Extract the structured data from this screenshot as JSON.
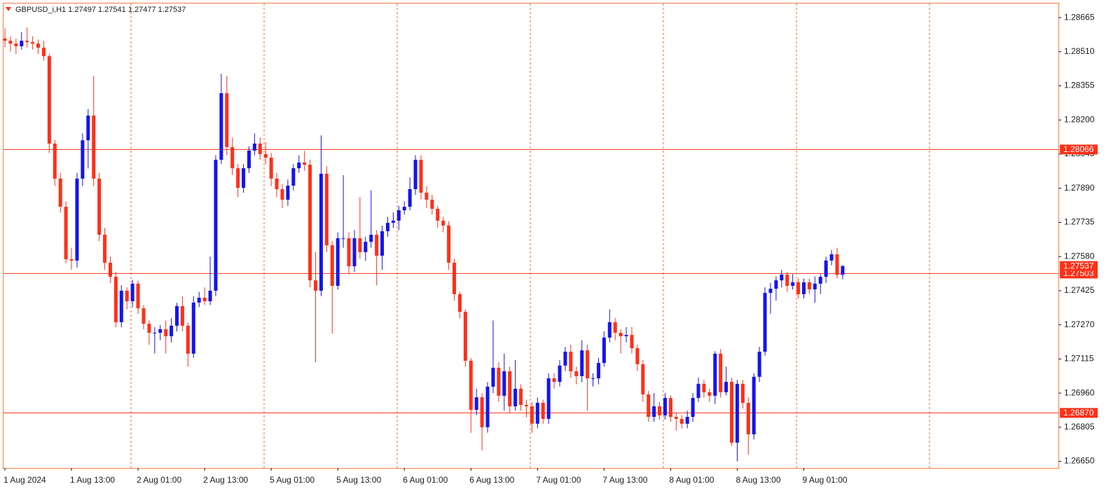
{
  "chart_data": {
    "type": "candlestick",
    "title": "GBPUSD_i,H1  1.27497 1.27541 1.27477 1.27537",
    "categories": [
      "1 Aug 2024",
      null,
      null,
      null,
      null,
      null,
      null,
      null,
      null,
      null,
      null,
      null,
      "1 Aug 13:00",
      null,
      null,
      null,
      null,
      null,
      null,
      null,
      null,
      null,
      null,
      null,
      "2 Aug 01:00",
      null,
      null,
      null,
      null,
      null,
      null,
      null,
      null,
      null,
      null,
      null,
      "2 Aug 13:00",
      null,
      null,
      null,
      null,
      null,
      null,
      null,
      null,
      null,
      null,
      null,
      "5 Aug 01:00",
      null,
      null,
      null,
      null,
      null,
      null,
      null,
      null,
      null,
      null,
      null,
      "5 Aug 13:00",
      null,
      null,
      null,
      null,
      null,
      null,
      null,
      null,
      null,
      null,
      null,
      "6 Aug 01:00",
      null,
      null,
      null,
      null,
      null,
      null,
      null,
      null,
      null,
      null,
      null,
      "6 Aug 13:00",
      null,
      null,
      null,
      null,
      null,
      null,
      null,
      null,
      null,
      null,
      null,
      "7 Aug 01:00",
      null,
      null,
      null,
      null,
      null,
      null,
      null,
      null,
      null,
      null,
      null,
      "7 Aug 13:00",
      null,
      null,
      null,
      null,
      null,
      null,
      null,
      null,
      null,
      null,
      null,
      "8 Aug 01:00",
      null,
      null,
      null,
      null,
      null,
      null,
      null,
      null,
      null,
      null,
      null,
      "8 Aug 13:00",
      null,
      null,
      null,
      null,
      null,
      null,
      null,
      null,
      null,
      null,
      null,
      "9 Aug 01:00",
      null,
      null,
      null,
      null,
      null,
      null,
      null
    ],
    "open": [
      1.2857,
      1.2856,
      1.28547,
      1.28535,
      1.2856,
      1.28554,
      1.28547,
      1.28528,
      1.2849,
      1.28093,
      1.27934,
      1.27806,
      1.27568,
      1.27562,
      1.27934,
      1.28108,
      1.2822,
      1.27934,
      1.27679,
      1.27552,
      1.27488,
      1.27282,
      1.27425,
      1.27377,
      1.27457,
      1.27345,
      1.27275,
      1.27234,
      1.27234,
      1.2725,
      1.27218,
      1.27266,
      1.27355,
      1.27266,
      1.27139,
      1.27371,
      1.27393,
      1.27377,
      1.27425,
      1.28019,
      1.28322,
      1.28077,
      1.27981,
      1.27892,
      1.27981,
      1.28061,
      1.28093,
      1.28045,
      1.28029,
      1.27934,
      1.27886,
      1.27838,
      1.27902,
      1.27981,
      1.28007,
      1.27997,
      1.27472,
      1.27425,
      1.27956,
      1.27631,
      1.27447,
      1.27663,
      1.27663,
      1.27536,
      1.27663,
      1.276,
      1.27647,
      1.27679,
      1.27584,
      1.27695,
      1.27733,
      1.27743,
      1.2779,
      1.27806,
      1.27886,
      1.28019,
      1.2787,
      1.27838,
      1.27797,
      1.27743,
      1.27721,
      1.27552,
      1.27409,
      1.27329,
      1.27107,
      1.26884,
      1.26941,
      1.26805,
      1.26989,
      1.27075,
      1.26948,
      1.27059,
      1.269,
      1.2698,
      1.26906,
      1.269,
      1.26821,
      1.26916,
      1.26843,
      1.27027,
      1.27011,
      1.27085,
      1.27148,
      1.27059,
      1.27037,
      1.27154,
      1.27027,
      1.27027,
      1.27097,
      1.27212,
      1.27282,
      1.27234,
      1.27218,
      1.27224,
      1.27164,
      1.27091,
      1.26954,
      1.26852,
      1.269,
      1.26859,
      1.26938,
      1.26852,
      1.26843,
      1.26821,
      1.26852,
      1.26938,
      1.27002,
      1.26964,
      1.26948,
      1.27139,
      1.26964,
      1.27011,
      1.26735,
      1.27002,
      1.26916,
      1.26773,
      1.27034,
      1.27148,
      1.27415,
      1.27434,
      1.27472,
      1.27498,
      1.27447,
      1.27463,
      1.27409,
      1.27463,
      1.27431,
      1.27457,
      1.27488,
      1.27562,
      1.2759,
      1.27497
    ],
    "high": [
      1.28617,
      1.2858,
      1.2857,
      1.286,
      1.2862,
      1.2858,
      1.28565,
      1.2856,
      1.285,
      1.2811,
      1.2796,
      1.2783,
      1.2762,
      1.2796,
      1.2814,
      1.2825,
      1.284,
      1.2796,
      1.2771,
      1.2758,
      1.2751,
      1.2745,
      1.2744,
      1.27475,
      1.2747,
      1.2736,
      1.2729,
      1.2726,
      1.2727,
      1.2729,
      1.273,
      1.2737,
      1.274,
      1.2728,
      1.274,
      1.2742,
      1.2744,
      1.2758,
      1.2804,
      1.2841,
      1.284,
      1.2812,
      1.28,
      1.28,
      1.2808,
      1.2814,
      1.2812,
      1.281,
      1.2805,
      1.2796,
      1.2791,
      1.2793,
      1.28,
      1.2804,
      1.2806,
      1.2802,
      1.276,
      1.2813,
      1.2799,
      1.2765,
      1.2769,
      1.2795,
      1.2769,
      1.277,
      1.2785,
      1.2767,
      1.2788,
      1.277,
      1.2772,
      1.2776,
      1.2778,
      1.2781,
      1.2783,
      1.2794,
      1.2804,
      1.2804,
      1.279,
      1.2786,
      1.2781,
      1.2776,
      1.2774,
      1.2757,
      1.2742,
      1.2734,
      1.2712,
      1.2698,
      1.2696,
      1.2701,
      1.2729,
      1.271,
      1.2714,
      1.2708,
      1.2711,
      1.27,
      1.2693,
      1.2692,
      1.2694,
      1.2693,
      1.2705,
      1.2705,
      1.2711,
      1.2717,
      1.2718,
      1.2708,
      1.272,
      1.2718,
      1.2705,
      1.2712,
      1.2724,
      1.2734,
      1.273,
      1.2725,
      1.2726,
      1.2726,
      1.2718,
      1.2711,
      1.2697,
      1.2696,
      1.2692,
      1.2696,
      1.2695,
      1.2687,
      1.2686,
      1.2688,
      1.2696,
      1.2703,
      1.2702,
      1.2698,
      1.2715,
      1.2716,
      1.2708,
      1.2703,
      1.2702,
      1.2702,
      1.2694,
      1.2705,
      1.2717,
      1.2744,
      1.2746,
      1.2749,
      1.2752,
      1.2751,
      1.275,
      1.2748,
      1.2748,
      1.2748,
      1.2749,
      1.275,
      1.2758,
      1.2761,
      1.2762,
      1.27541
    ],
    "low": [
      1.2853,
      1.2851,
      1.285,
      1.2852,
      1.2853,
      1.2852,
      1.285,
      1.2847,
      1.2805,
      1.279,
      1.2778,
      1.2755,
      1.2752,
      1.2753,
      1.279,
      1.2798,
      1.279,
      1.2765,
      1.2752,
      1.2746,
      1.2726,
      1.2726,
      1.2734,
      1.2735,
      1.2732,
      1.2725,
      1.2718,
      1.2714,
      1.272,
      1.2714,
      1.2719,
      1.2724,
      1.2724,
      1.2708,
      1.2712,
      1.2735,
      1.2736,
      1.2736,
      1.274,
      1.28,
      1.2804,
      1.2795,
      1.2785,
      1.2787,
      1.2796,
      1.2804,
      1.2802,
      1.28,
      1.279,
      1.2785,
      1.278,
      1.2781,
      1.2788,
      1.2796,
      1.2797,
      1.2744,
      1.271,
      1.274,
      1.276,
      1.2723,
      1.2743,
      1.2762,
      1.275,
      1.2751,
      1.2757,
      1.2756,
      1.2762,
      1.2745,
      1.2752,
      1.2767,
      1.2771,
      1.277,
      1.2777,
      1.2779,
      1.2786,
      1.2784,
      1.278,
      1.2777,
      1.2771,
      1.2769,
      1.2752,
      1.2738,
      1.273,
      1.2708,
      1.2678,
      1.2686,
      1.267,
      1.2678,
      1.2696,
      1.2692,
      1.2688,
      1.2687,
      1.2688,
      1.2688,
      1.2685,
      1.2678,
      1.268,
      1.2682,
      1.2682,
      1.2698,
      1.2699,
      1.2706,
      1.2703,
      1.27,
      1.2701,
      1.2688,
      1.2699,
      1.27,
      1.2708,
      1.2719,
      1.272,
      1.2714,
      1.2719,
      1.2714,
      1.2706,
      1.2692,
      1.2683,
      1.2683,
      1.2684,
      1.2684,
      1.2683,
      1.2679,
      1.268,
      1.268,
      1.2683,
      1.2692,
      1.2694,
      1.2692,
      1.2691,
      1.2694,
      1.2695,
      1.2672,
      1.2665,
      1.2689,
      1.2668,
      1.2675,
      1.2701,
      1.2713,
      1.2732,
      1.2738,
      1.2744,
      1.2742,
      1.2743,
      1.2739,
      1.2739,
      1.2741,
      1.2737,
      1.2741,
      1.2746,
      1.2754,
      1.2748,
      1.27477
    ],
    "close": [
      1.2856,
      1.28547,
      1.28535,
      1.2856,
      1.28554,
      1.28547,
      1.28528,
      1.2849,
      1.28093,
      1.27934,
      1.27806,
      1.27568,
      1.27562,
      1.27934,
      1.28108,
      1.2822,
      1.27934,
      1.27679,
      1.27552,
      1.27488,
      1.27282,
      1.27425,
      1.27377,
      1.27457,
      1.27345,
      1.27275,
      1.27234,
      1.27234,
      1.2725,
      1.27218,
      1.27266,
      1.27355,
      1.27266,
      1.27139,
      1.27371,
      1.27393,
      1.27377,
      1.27425,
      1.28019,
      1.28322,
      1.28077,
      1.27981,
      1.27892,
      1.27981,
      1.28061,
      1.28093,
      1.28045,
      1.28029,
      1.27934,
      1.27886,
      1.27838,
      1.27902,
      1.27981,
      1.28007,
      1.27997,
      1.27472,
      1.27425,
      1.27956,
      1.27631,
      1.27447,
      1.27663,
      1.27663,
      1.27536,
      1.27663,
      1.276,
      1.27647,
      1.27679,
      1.27584,
      1.27695,
      1.27733,
      1.27743,
      1.2779,
      1.27806,
      1.27886,
      1.28019,
      1.2787,
      1.27838,
      1.27797,
      1.27743,
      1.27721,
      1.27552,
      1.27409,
      1.27329,
      1.27107,
      1.26884,
      1.26941,
      1.26805,
      1.26989,
      1.27075,
      1.26948,
      1.27059,
      1.269,
      1.2698,
      1.26906,
      1.269,
      1.26821,
      1.26916,
      1.26843,
      1.27027,
      1.27011,
      1.27085,
      1.27148,
      1.27059,
      1.27037,
      1.27154,
      1.27027,
      1.27027,
      1.27097,
      1.27212,
      1.27282,
      1.27234,
      1.27218,
      1.27224,
      1.27164,
      1.27091,
      1.26954,
      1.26852,
      1.269,
      1.26859,
      1.26938,
      1.26852,
      1.26843,
      1.26821,
      1.26852,
      1.26938,
      1.27002,
      1.26964,
      1.26948,
      1.27139,
      1.26964,
      1.27011,
      1.26735,
      1.27002,
      1.26916,
      1.26773,
      1.27034,
      1.27148,
      1.27415,
      1.27434,
      1.27472,
      1.27498,
      1.27447,
      1.27463,
      1.27409,
      1.27463,
      1.27431,
      1.27457,
      1.27488,
      1.27562,
      1.2759,
      1.27497,
      1.27537
    ],
    "up_color": "#1414f0",
    "down_color": "#ff3018",
    "ylim": [
      1.2662,
      1.28729
    ],
    "yticks": [
      {
        "value": 1.28665,
        "label": "1.28665"
      },
      {
        "value": 1.2851,
        "label": "1.28510"
      },
      {
        "value": 1.28355,
        "label": "1.28355"
      },
      {
        "value": 1.282,
        "label": "1.28200"
      },
      {
        "value": 1.28045,
        "label": "1.28045"
      },
      {
        "value": 1.2789,
        "label": "1.27890"
      },
      {
        "value": 1.27735,
        "label": "1.27735"
      },
      {
        "value": 1.2758,
        "label": "1.27580"
      },
      {
        "value": 1.27425,
        "label": "1.27425"
      },
      {
        "value": 1.2727,
        "label": "1.27270"
      },
      {
        "value": 1.27115,
        "label": "1.27115"
      },
      {
        "value": 1.2696,
        "label": "1.26960"
      },
      {
        "value": 1.26805,
        "label": "1.26805"
      },
      {
        "value": 1.2665,
        "label": "1.26650"
      }
    ],
    "hlines": [
      {
        "value": 1.28066,
        "label": "1.28066"
      },
      {
        "value": 1.27503,
        "label": "1.27503"
      },
      {
        "value": 1.2687,
        "label": "1.26870"
      }
    ],
    "hline_color": "#ff3018",
    "price_label": {
      "value": 1.27537,
      "label": "1.27537"
    },
    "grid": true
  }
}
